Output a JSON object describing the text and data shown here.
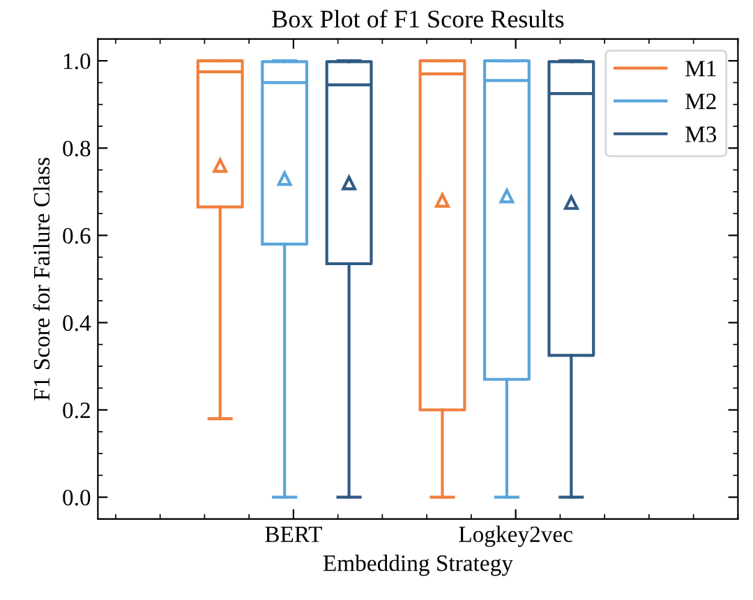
{
  "chart_data": {
    "type": "box",
    "title": "Box Plot of F1 Score Results",
    "xlabel": "Embedding Strategy",
    "ylabel": "F1 Score for Failure Class",
    "categories": [
      "BERT",
      "Logkey2vec"
    ],
    "series": [
      {
        "name": "M1",
        "color": "#f07f3c",
        "boxes": [
          {
            "low": 0.18,
            "q1": 0.665,
            "median": 0.975,
            "q3": 1.0,
            "high": 1.0,
            "mean": 0.76
          },
          {
            "low": 0.0,
            "q1": 0.2,
            "median": 0.97,
            "q3": 1.0,
            "high": 1.0,
            "mean": 0.68
          }
        ]
      },
      {
        "name": "M2",
        "color": "#5aa5dc",
        "boxes": [
          {
            "low": 0.0,
            "q1": 0.58,
            "median": 0.95,
            "q3": 0.998,
            "high": 1.0,
            "mean": 0.73
          },
          {
            "low": 0.0,
            "q1": 0.27,
            "median": 0.955,
            "q3": 1.0,
            "high": 1.0,
            "mean": 0.69
          }
        ]
      },
      {
        "name": "M3",
        "color": "#2f5b84",
        "boxes": [
          {
            "low": 0.0,
            "q1": 0.535,
            "median": 0.945,
            "q3": 0.998,
            "high": 1.0,
            "mean": 0.72
          },
          {
            "low": 0.0,
            "q1": 0.325,
            "median": 0.925,
            "q3": 0.998,
            "high": 1.0,
            "mean": 0.675
          }
        ]
      }
    ],
    "ylim": [
      -0.05,
      1.05
    ],
    "yticks": [
      {
        "value": 0,
        "label": "0.0"
      },
      0.2,
      0.4,
      0.6,
      0.8,
      {
        "value": 1,
        "label": "1.0"
      }
    ],
    "legend": "top right",
    "marker": "triangle",
    "grid": false
  }
}
